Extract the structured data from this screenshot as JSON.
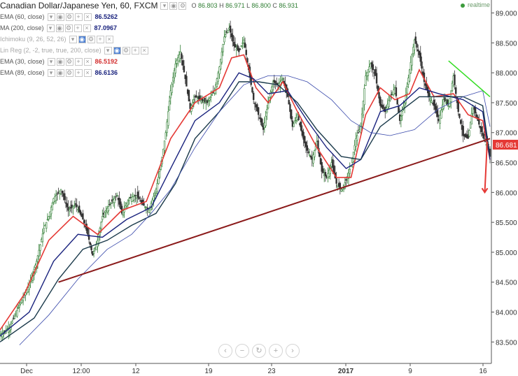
{
  "header": {
    "symbol_title": "Canadian Dollar/Japanese Yen, 60, FXCM",
    "ohlc": {
      "o_label": "O",
      "o": "86.803",
      "h_label": "H",
      "h": "86.971",
      "l_label": "L",
      "l": "86.800",
      "c_label": "C",
      "c": "86.931"
    },
    "realtime_label": "realtime"
  },
  "legend": [
    {
      "label": "EMA (60, close)",
      "value": "86.5262",
      "color": "#1a237e"
    },
    {
      "label": "MA (200, close)",
      "value": "87.0967",
      "color": "#1a237e"
    },
    {
      "label": "Ichimoku (9, 26, 52, 26)",
      "value": "",
      "color": "#a8a8a8"
    },
    {
      "label": "Lin Reg (2, -2, true, true, 200, close)",
      "value": "",
      "color": "#a8a8a8"
    },
    {
      "label": "EMA (30, close)",
      "value": "86.5192",
      "color": "#d32f2f"
    },
    {
      "label": "EMA (89, close)",
      "value": "86.6136",
      "color": "#1a237e"
    }
  ],
  "price_tag": "86.681",
  "chart_data": {
    "type": "line",
    "title": "Canadian Dollar/Japanese Yen, 60, FXCM",
    "y_ticks": [
      "89.000",
      "88.500",
      "88.000",
      "87.500",
      "87.000",
      "86.500",
      "86.000",
      "85.500",
      "85.000",
      "84.500",
      "84.000",
      "83.500"
    ],
    "x_ticks": [
      "Dec",
      "12:00",
      "12",
      "19",
      "23",
      "2017",
      "9",
      "16"
    ],
    "ylim": [
      83.2,
      89.1
    ],
    "grid": false,
    "series": [
      {
        "name": "EMA (30, close)",
        "color": "#e53935"
      },
      {
        "name": "EMA (60, close)",
        "color": "#1a237e"
      },
      {
        "name": "EMA (89, close)",
        "color": "#1a237e"
      },
      {
        "name": "MA (200, close)",
        "color": "#1a237e"
      }
    ],
    "price_path": [
      [
        0,
        83.62
      ],
      [
        4,
        83.75
      ],
      [
        8,
        84.12
      ],
      [
        12,
        84.45
      ],
      [
        15,
        84.85
      ],
      [
        18,
        85.4
      ],
      [
        20,
        85.6
      ],
      [
        22,
        85.9
      ],
      [
        25,
        86.05
      ],
      [
        28,
        85.7
      ],
      [
        31,
        85.8
      ],
      [
        34,
        85.55
      ],
      [
        36,
        85.3
      ],
      [
        38,
        84.95
      ],
      [
        40,
        85.2
      ],
      [
        42,
        85.6
      ],
      [
        45,
        85.8
      ],
      [
        48,
        85.95
      ],
      [
        50,
        85.65
      ],
      [
        53,
        85.9
      ],
      [
        56,
        85.95
      ],
      [
        58,
        85.82
      ],
      [
        61,
        85.7
      ],
      [
        64,
        86.05
      ],
      [
        66,
        86.45
      ],
      [
        68,
        87.0
      ],
      [
        70,
        87.7
      ],
      [
        72,
        88.15
      ],
      [
        74,
        88.35
      ],
      [
        76,
        87.9
      ],
      [
        78,
        87.4
      ],
      [
        80,
        87.6
      ],
      [
        82,
        87.55
      ],
      [
        85,
        87.5
      ],
      [
        88,
        87.7
      ],
      [
        90,
        88.1
      ],
      [
        92,
        88.6
      ],
      [
        94,
        88.75
      ],
      [
        96,
        88.45
      ],
      [
        98,
        88.35
      ],
      [
        100,
        88.55
      ],
      [
        102,
        88.05
      ],
      [
        104,
        87.55
      ],
      [
        106,
        87.3
      ],
      [
        108,
        87.05
      ],
      [
        110,
        87.5
      ],
      [
        112,
        87.85
      ],
      [
        114,
        87.8
      ],
      [
        116,
        87.9
      ],
      [
        118,
        87.6
      ],
      [
        120,
        87.1
      ],
      [
        122,
        87.3
      ],
      [
        124,
        86.95
      ],
      [
        126,
        86.7
      ],
      [
        128,
        86.55
      ],
      [
        130,
        86.85
      ],
      [
        132,
        86.35
      ],
      [
        134,
        86.25
      ],
      [
        136,
        86.5
      ],
      [
        138,
        86.15
      ],
      [
        140,
        86.05
      ],
      [
        142,
        86.2
      ],
      [
        144,
        86.45
      ],
      [
        146,
        86.9
      ],
      [
        148,
        87.1
      ],
      [
        150,
        87.95
      ],
      [
        152,
        88.15
      ],
      [
        154,
        87.95
      ],
      [
        156,
        87.45
      ],
      [
        158,
        87.35
      ],
      [
        160,
        87.6
      ],
      [
        162,
        87.75
      ],
      [
        164,
        87.2
      ],
      [
        166,
        87.5
      ],
      [
        168,
        88.05
      ],
      [
        170,
        88.55
      ],
      [
        172,
        88.3
      ],
      [
        174,
        87.85
      ],
      [
        176,
        87.6
      ],
      [
        178,
        87.45
      ],
      [
        180,
        87.2
      ],
      [
        182,
        87.55
      ],
      [
        184,
        87.45
      ],
      [
        186,
        87.95
      ],
      [
        188,
        87.35
      ],
      [
        190,
        86.95
      ],
      [
        192,
        86.9
      ],
      [
        194,
        87.45
      ],
      [
        196,
        87.2
      ],
      [
        198,
        86.95
      ],
      [
        200,
        86.75
      ],
      [
        201,
        86.6
      ]
    ],
    "series_values": [
      [
        [
          0,
          83.7
        ],
        [
          10,
          84.3
        ],
        [
          20,
          85.2
        ],
        [
          30,
          85.6
        ],
        [
          40,
          85.3
        ],
        [
          50,
          85.7
        ],
        [
          60,
          85.85
        ],
        [
          70,
          86.9
        ],
        [
          80,
          87.5
        ],
        [
          90,
          87.75
        ],
        [
          95,
          88.25
        ],
        [
          100,
          88.3
        ],
        [
          105,
          87.75
        ],
        [
          110,
          87.5
        ],
        [
          116,
          87.85
        ],
        [
          122,
          87.35
        ],
        [
          130,
          86.75
        ],
        [
          138,
          86.25
        ],
        [
          144,
          86.25
        ],
        [
          150,
          87.3
        ],
        [
          156,
          87.75
        ],
        [
          162,
          87.55
        ],
        [
          168,
          87.65
        ],
        [
          172,
          88.05
        ],
        [
          178,
          87.6
        ],
        [
          186,
          87.65
        ],
        [
          192,
          87.3
        ],
        [
          198,
          87.2
        ],
        [
          201,
          86.55
        ]
      ],
      [
        [
          0,
          83.6
        ],
        [
          12,
          84.0
        ],
        [
          22,
          84.85
        ],
        [
          32,
          85.3
        ],
        [
          42,
          85.25
        ],
        [
          52,
          85.55
        ],
        [
          62,
          85.75
        ],
        [
          70,
          86.4
        ],
        [
          80,
          87.2
        ],
        [
          90,
          87.5
        ],
        [
          98,
          88.0
        ],
        [
          104,
          87.9
        ],
        [
          110,
          87.65
        ],
        [
          118,
          87.7
        ],
        [
          126,
          87.2
        ],
        [
          134,
          86.75
        ],
        [
          142,
          86.4
        ],
        [
          148,
          86.55
        ],
        [
          156,
          87.35
        ],
        [
          164,
          87.45
        ],
        [
          172,
          87.75
        ],
        [
          180,
          87.65
        ],
        [
          190,
          87.55
        ],
        [
          198,
          87.35
        ],
        [
          201,
          86.55
        ]
      ],
      [
        [
          0,
          83.5
        ],
        [
          14,
          83.9
        ],
        [
          24,
          84.55
        ],
        [
          34,
          85.05
        ],
        [
          44,
          85.2
        ],
        [
          54,
          85.45
        ],
        [
          64,
          85.65
        ],
        [
          72,
          86.15
        ],
        [
          80,
          86.9
        ],
        [
          90,
          87.35
        ],
        [
          98,
          87.85
        ],
        [
          106,
          87.85
        ],
        [
          114,
          87.8
        ],
        [
          122,
          87.5
        ],
        [
          130,
          87.05
        ],
        [
          140,
          86.6
        ],
        [
          148,
          86.55
        ],
        [
          156,
          87.1
        ],
        [
          164,
          87.35
        ],
        [
          172,
          87.6
        ],
        [
          180,
          87.6
        ],
        [
          190,
          87.6
        ],
        [
          198,
          87.45
        ],
        [
          201,
          86.6
        ]
      ],
      [
        [
          8,
          83.45
        ],
        [
          20,
          83.95
        ],
        [
          32,
          84.55
        ],
        [
          44,
          85.05
        ],
        [
          54,
          85.3
        ],
        [
          62,
          85.65
        ],
        [
          70,
          86.05
        ],
        [
          80,
          86.75
        ],
        [
          90,
          87.35
        ],
        [
          100,
          87.8
        ],
        [
          110,
          87.95
        ],
        [
          118,
          87.95
        ],
        [
          126,
          87.85
        ],
        [
          136,
          87.55
        ],
        [
          144,
          87.2
        ],
        [
          152,
          87.0
        ],
        [
          160,
          86.95
        ],
        [
          170,
          87.05
        ],
        [
          180,
          87.4
        ],
        [
          190,
          87.6
        ],
        [
          198,
          87.7
        ],
        [
          201,
          87.1
        ]
      ]
    ],
    "trendline_support": [
      [
        24,
        84.5
      ],
      [
        201,
        86.9
      ]
    ],
    "trendline_resistance": [
      [
        184,
        88.2
      ],
      [
        201,
        87.6
      ]
    ],
    "projection_arrow": [
      [
        201,
        86.85
      ],
      [
        200,
        86.0
      ]
    ]
  }
}
